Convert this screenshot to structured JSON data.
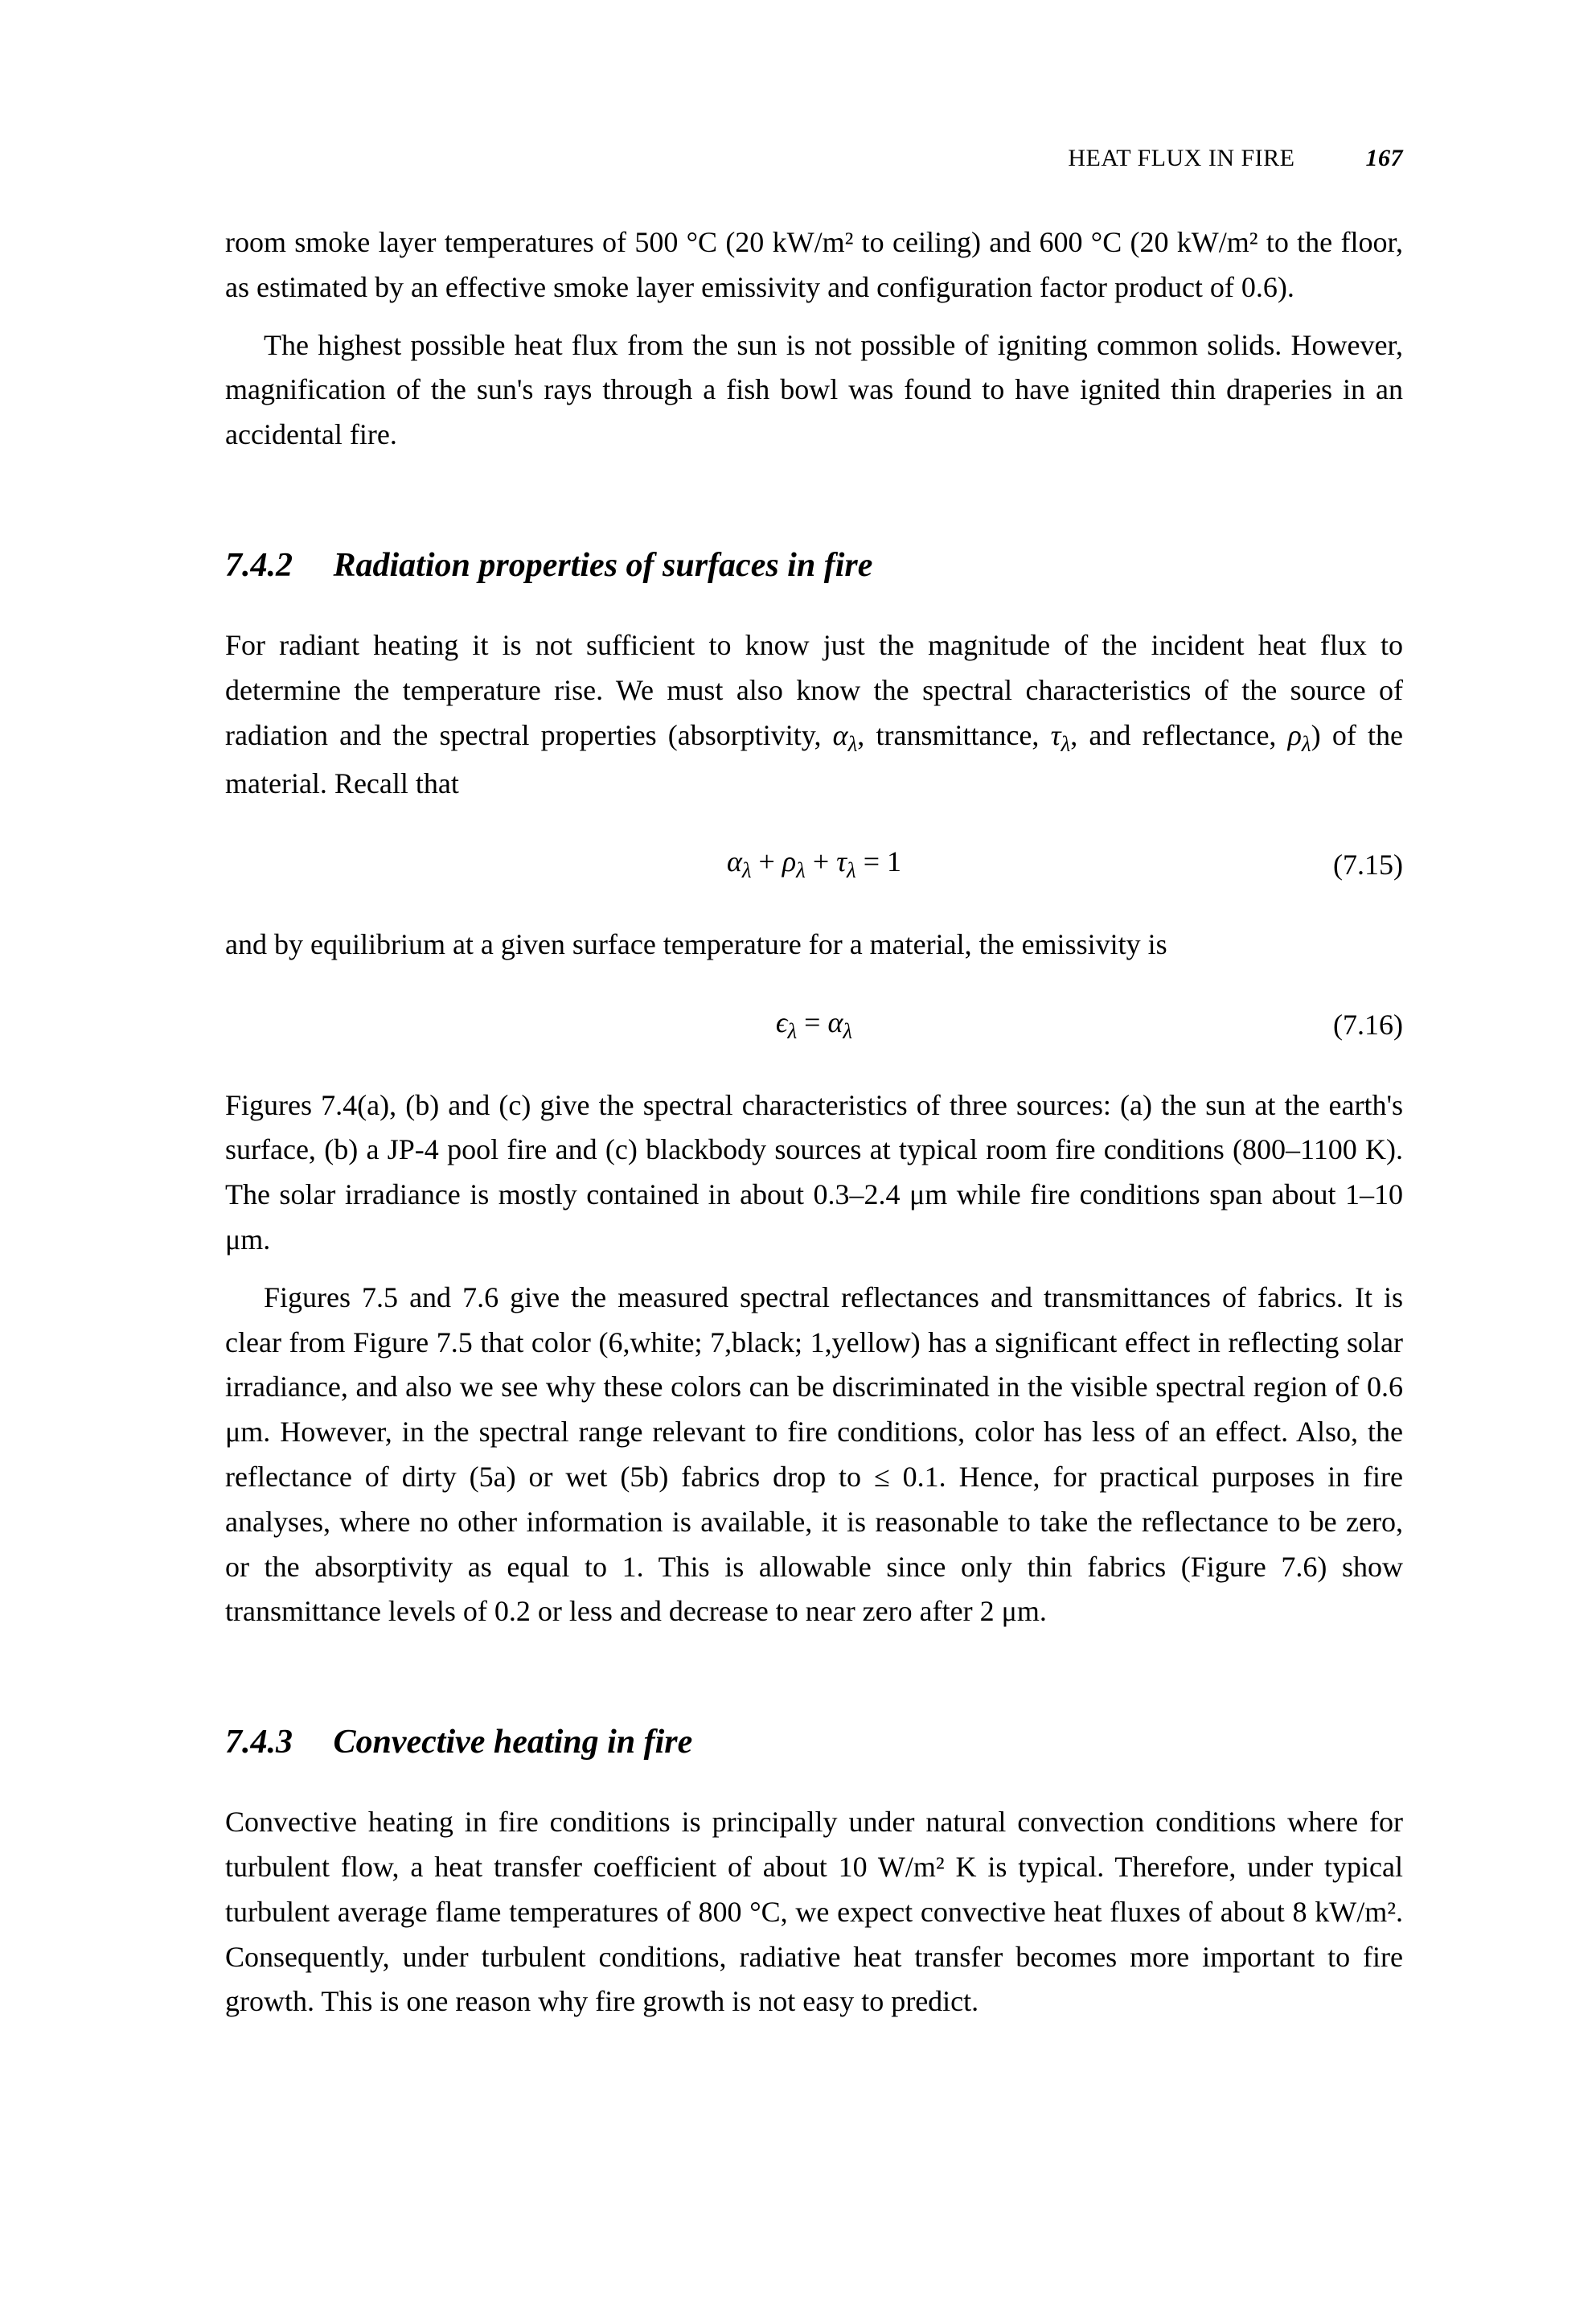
{
  "runningHead": {
    "title": "HEAT FLUX IN FIRE",
    "page": "167"
  },
  "intro": {
    "p1": "room smoke layer temperatures of 500 °C (20 kW/m² to ceiling) and 600 °C (20 kW/m² to the floor, as estimated by an effective smoke layer emissivity and configuration factor product of 0.6).",
    "p2": "The highest possible heat flux from the sun is not possible of igniting common solids. However, magnification of the sun's rays through a fish bowl was found to have ignited thin draperies in an accidental fire."
  },
  "sec742": {
    "num": "7.4.2",
    "title": "Radiation properties of surfaces in fire",
    "p1a": "For radiant heating it is not sufficient to know just the magnitude of the incident heat flux to determine the temperature rise. We must also know the spectral characteristics of the source of radiation and the spectral properties (absorptivity, ",
    "p1b": ", transmittance, ",
    "p1c": ", and reflectance, ",
    "p1d": ") of the material. Recall that",
    "eq15": {
      "formula": "α",
      "plus1": " + ",
      "rho": "ρ",
      "plus2": " + ",
      "tau": "τ",
      "eq": " = 1",
      "num": "(7.15)"
    },
    "p2": "and by equilibrium at a given surface temperature for a material, the emissivity is",
    "eq16": {
      "eps": "ϵ",
      "eq": " = ",
      "alpha": "α",
      "num": "(7.16)"
    },
    "p3": "Figures 7.4(a), (b) and (c) give the spectral characteristics of three sources: (a) the sun at the earth's surface, (b) a JP-4 pool fire and (c) blackbody sources at typical room fire conditions (800–1100 K). The solar irradiance is mostly contained in about 0.3–2.4 μm while fire conditions span about 1–10 μm.",
    "p4": "Figures 7.5 and 7.6 give the measured spectral reflectances and transmittances of fabrics. It is clear from Figure 7.5 that color (6,white; 7,black; 1,yellow) has a significant effect in reflecting solar irradiance, and also we see why these colors can be discriminated in the visible spectral region of 0.6 μm. However, in the spectral range relevant to fire conditions, color has less of an effect. Also, the reflectance of dirty (5a) or wet (5b) fabrics drop to ≤ 0.1. Hence, for practical purposes in fire analyses, where no other information is available, it is reasonable to take the reflectance to be zero, or the absorptivity as equal to 1. This is allowable since only thin fabrics (Figure 7.6) show transmittance levels of 0.2 or less and decrease to near zero after 2 μm."
  },
  "sec743": {
    "num": "7.4.3",
    "title": "Convective heating in fire",
    "p1": "Convective heating in fire conditions is principally under natural convection conditions where for turbulent flow, a heat transfer coefficient of about 10 W/m² K is typical. Therefore, under typical turbulent average flame temperatures of 800 °C, we expect convective heat fluxes of about 8 kW/m². Consequently, under turbulent conditions, radiative heat transfer becomes more important to fire growth. This is one reason why fire growth is not easy to predict."
  },
  "symbols": {
    "alpha_l": "α",
    "tau_l": "τ",
    "rho_l": "ρ",
    "lambda": "λ"
  }
}
